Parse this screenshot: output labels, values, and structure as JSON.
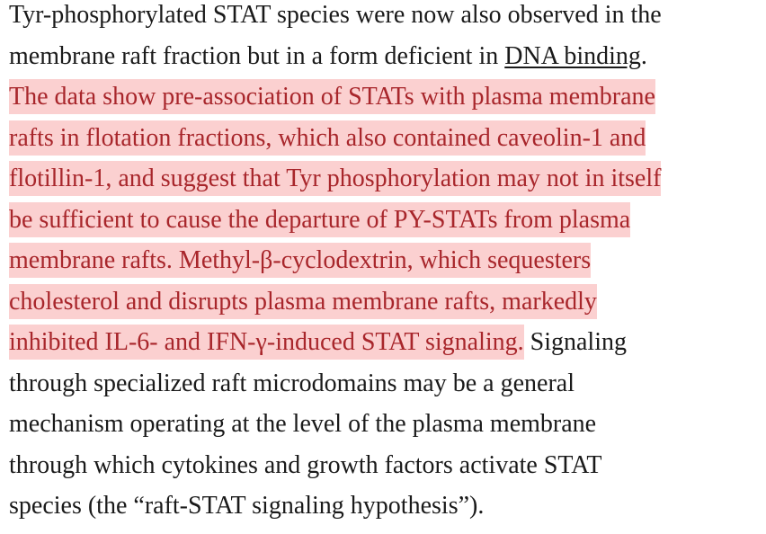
{
  "paragraph": {
    "lines": [
      [
        {
          "text": "Tyr-phosphorylated STAT species were now also observed in the",
          "kind": "plain"
        }
      ],
      [
        {
          "text": "membrane raft fraction but in a form deficient in ",
          "kind": "plain"
        },
        {
          "text": "DNA binding",
          "kind": "link"
        },
        {
          "text": ".",
          "kind": "plain"
        }
      ],
      [
        {
          "text": "The data show pre-association of STATs with plasma membrane",
          "kind": "highlight"
        }
      ],
      [
        {
          "text": "rafts in flotation fractions, which also contained caveolin-1 and",
          "kind": "highlight"
        }
      ],
      [
        {
          "text": "flotillin-1, and suggest that Tyr phosphorylation may not in itself",
          "kind": "highlight"
        }
      ],
      [
        {
          "text": "be sufficient to cause the departure of PY-STATs from plasma",
          "kind": "highlight"
        }
      ],
      [
        {
          "text": "membrane rafts. Methyl-β-cyclodextrin, which sequesters",
          "kind": "highlight"
        }
      ],
      [
        {
          "text": "cholesterol and disrupts plasma membrane rafts, markedly",
          "kind": "highlight"
        }
      ],
      [
        {
          "text": "inhibited IL-6- and IFN-γ-induced STAT signaling.",
          "kind": "highlight"
        },
        {
          "text": " Signaling",
          "kind": "plain"
        }
      ],
      [
        {
          "text": "through specialized raft microdomains may be a general",
          "kind": "plain"
        }
      ],
      [
        {
          "text": "mechanism operating at the level of the plasma membrane",
          "kind": "plain"
        }
      ],
      [
        {
          "text": "through which cytokines and growth factors activate STAT",
          "kind": "plain"
        }
      ],
      [
        {
          "text": "species (the “raft-STAT signaling hypothesis”).",
          "kind": "plain"
        }
      ]
    ]
  }
}
